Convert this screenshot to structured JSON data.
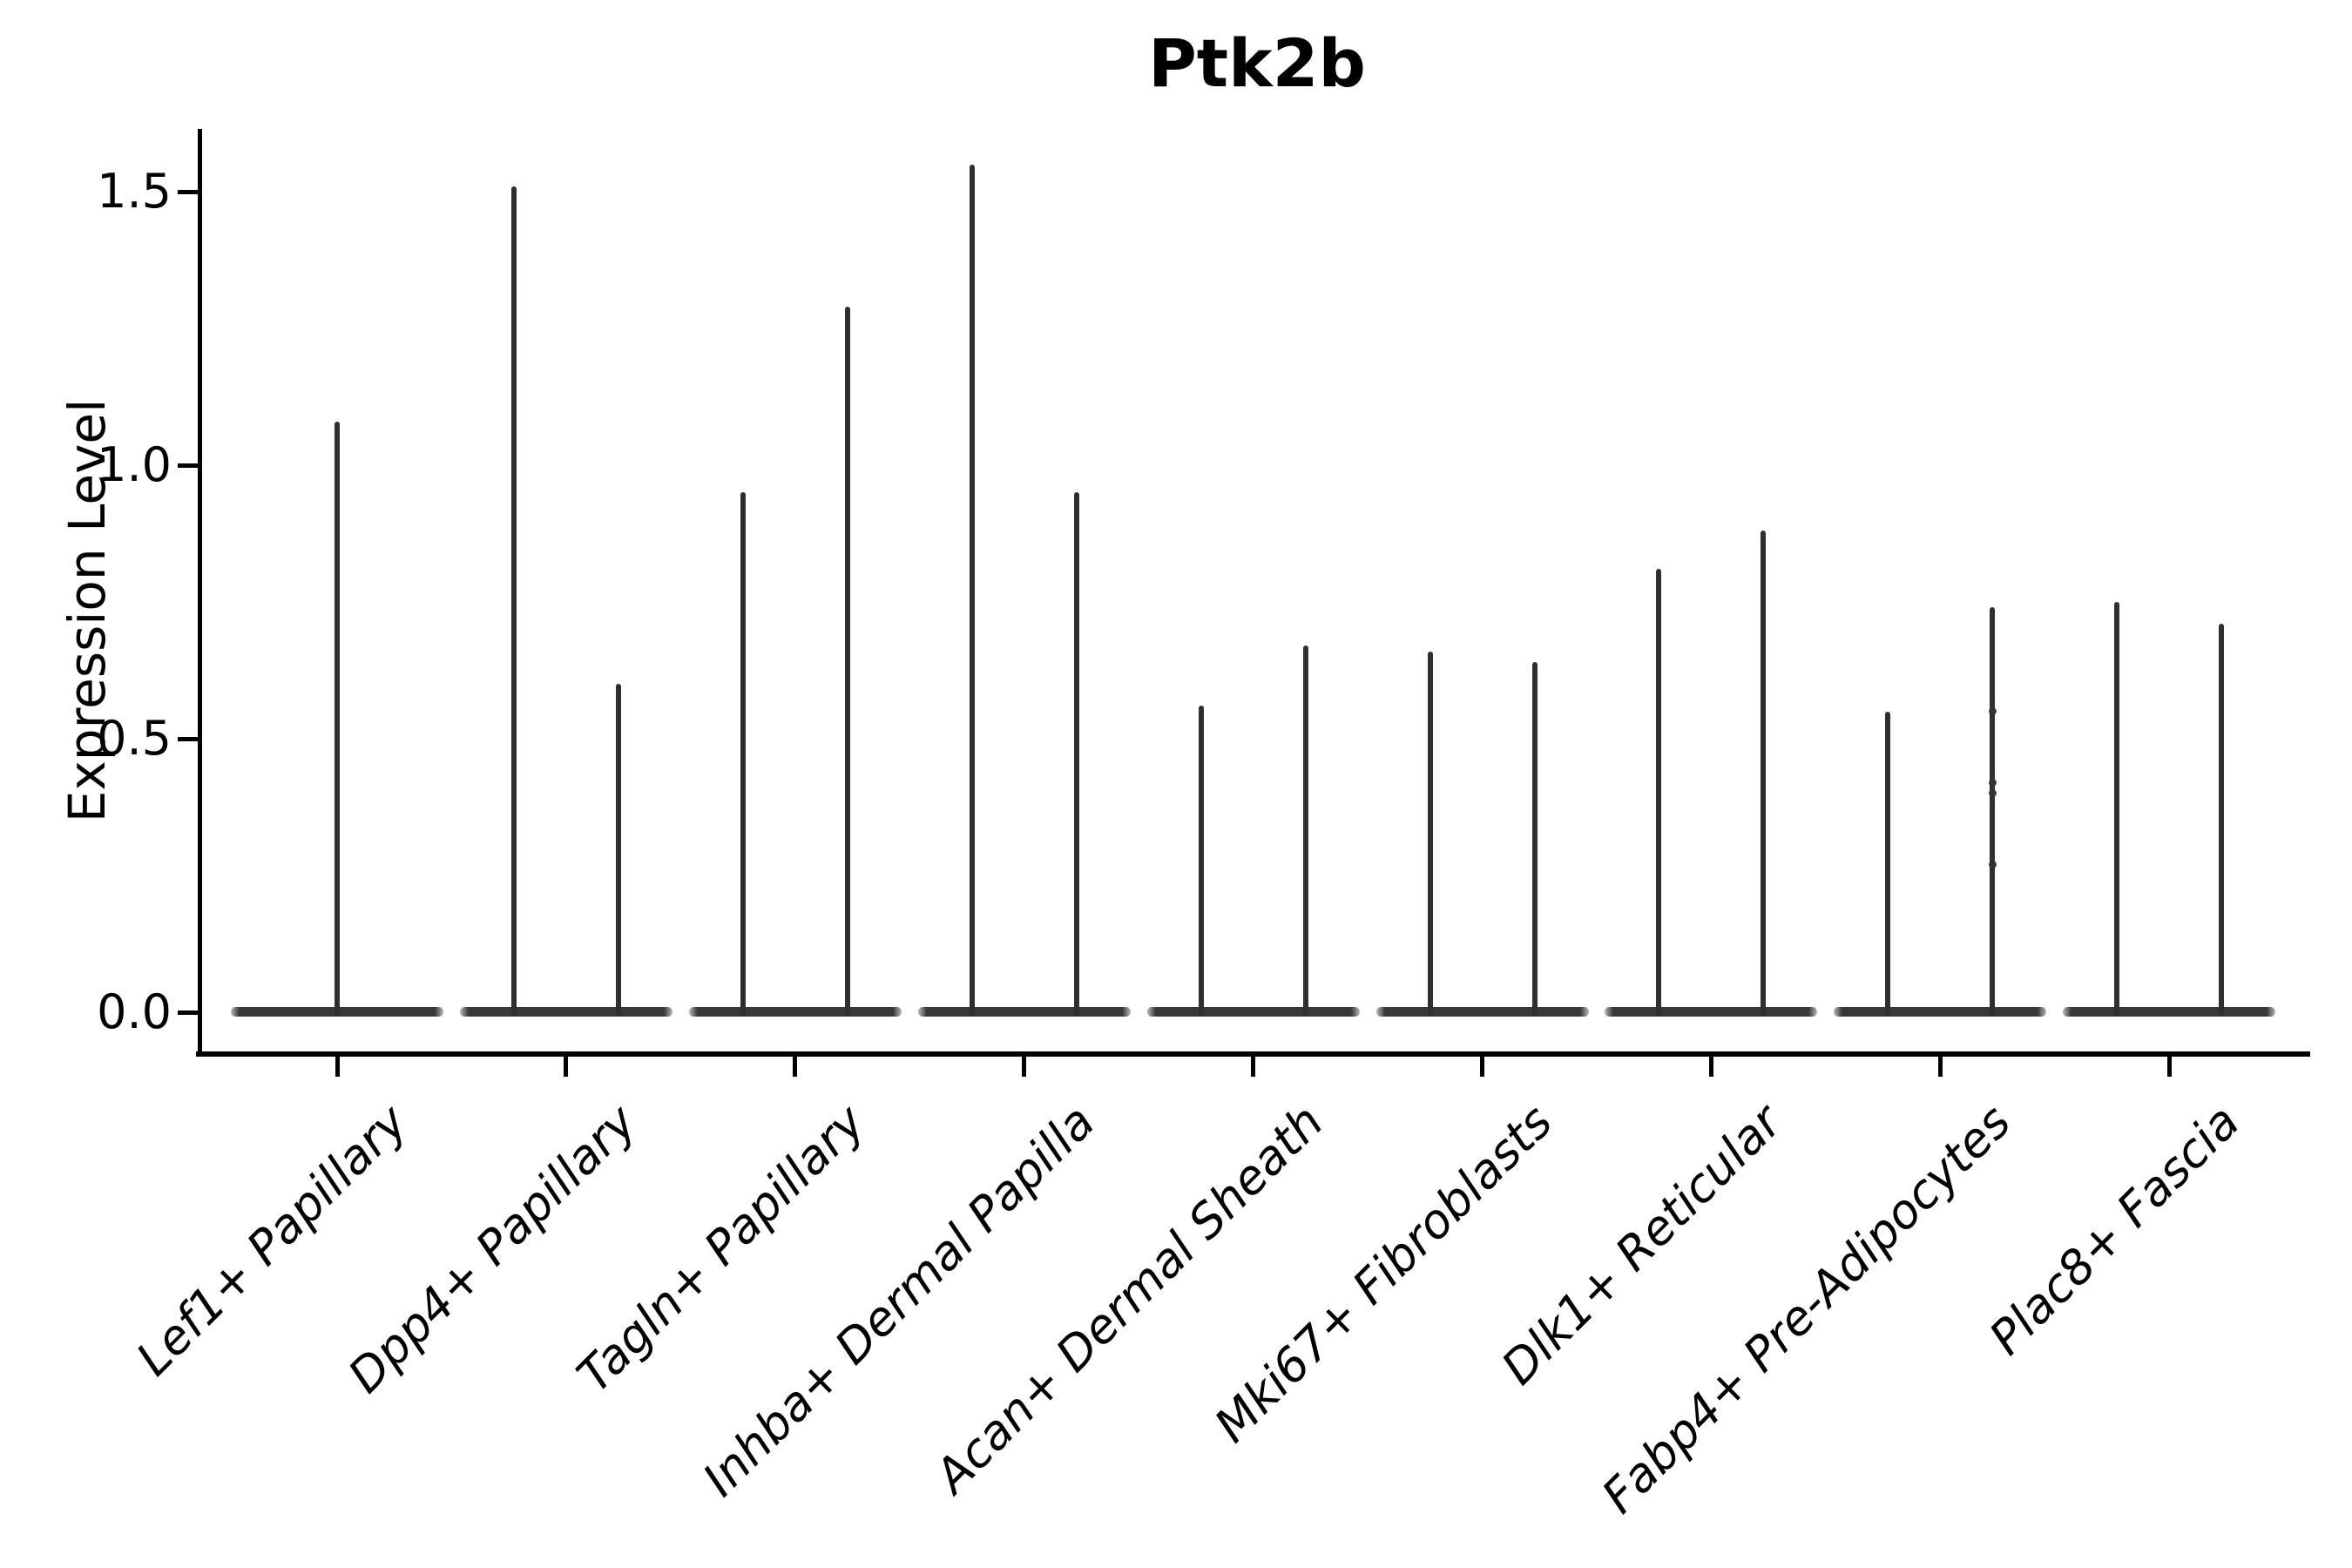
{
  "title": "Ptk2b",
  "y_axis": {
    "label": "Expression Level",
    "ticks": [
      {
        "label": "1.5",
        "value": 1.5
      },
      {
        "label": "1.0",
        "value": 1.0
      },
      {
        "label": "0.5",
        "value": 0.5
      },
      {
        "label": "0.0",
        "value": 0.0
      }
    ]
  },
  "x_axis": {
    "categories": [
      "Lef1+ Papillary",
      "Dpp4+ Papillary",
      "Tagln+ Papillary",
      "Inhba+ Dermal Papilla",
      "Acan+ Dermal Sheath",
      "Mki67+ Fibroblasts",
      "Dlk1+ Reticular",
      "Fabp4+ Pre-Adipocytes",
      "Plac8+ Fascia"
    ]
  },
  "chart_data": {
    "type": "violin",
    "title": "Ptk2b",
    "xlabel": "",
    "ylabel": "Expression Level",
    "ylim": [
      -0.07,
      1.62
    ],
    "yticks": [
      0.0,
      0.5,
      1.0,
      1.5
    ],
    "grid": false,
    "legend": "none",
    "note": "violin bodies are collapsed flat at expression 0 with thin spikes reaching each violin's maximum value; group 1 has one full-width violin, groups 2-9 each have two half-width violins",
    "categories": [
      "Lef1+ Papillary",
      "Dpp4+ Papillary",
      "Tagln+ Papillary",
      "Inhba+ Dermal Papilla",
      "Acan+ Dermal Sheath",
      "Mki67+ Fibroblasts",
      "Dlk1+ Reticular",
      "Fabp4+ Pre-Adipocytes",
      "Plac8+ Fascia"
    ],
    "violins": [
      {
        "category": "Lef1+ Papillary",
        "spike_max_values": [
          1.08
        ]
      },
      {
        "category": "Dpp4+ Papillary",
        "spike_max_values": [
          1.51,
          0.6
        ]
      },
      {
        "category": "Tagln+ Papillary",
        "spike_max_values": [
          0.95,
          1.29
        ]
      },
      {
        "category": "Inhba+ Dermal Papilla",
        "spike_max_values": [
          1.55,
          0.95
        ]
      },
      {
        "category": "Acan+ Dermal Sheath",
        "spike_max_values": [
          0.56,
          0.67
        ]
      },
      {
        "category": "Mki67+ Fibroblasts",
        "spike_max_values": [
          0.66,
          0.64
        ]
      },
      {
        "category": "Dlk1+ Reticular",
        "spike_max_values": [
          0.81,
          0.88
        ]
      },
      {
        "category": "Fabp4+ Pre-Adipocytes",
        "spike_max_values": [
          0.55,
          0.74
        ],
        "scatter_points_right_violin": [
          0.55,
          0.42,
          0.4,
          0.27
        ]
      },
      {
        "category": "Plac8+ Fascia",
        "spike_max_values": [
          0.75,
          0.71
        ]
      }
    ],
    "baseline_value": 0.0
  },
  "colors": {
    "background": "#ffffff",
    "violin": "#333333",
    "spine": "#000000",
    "text": "#000000"
  }
}
